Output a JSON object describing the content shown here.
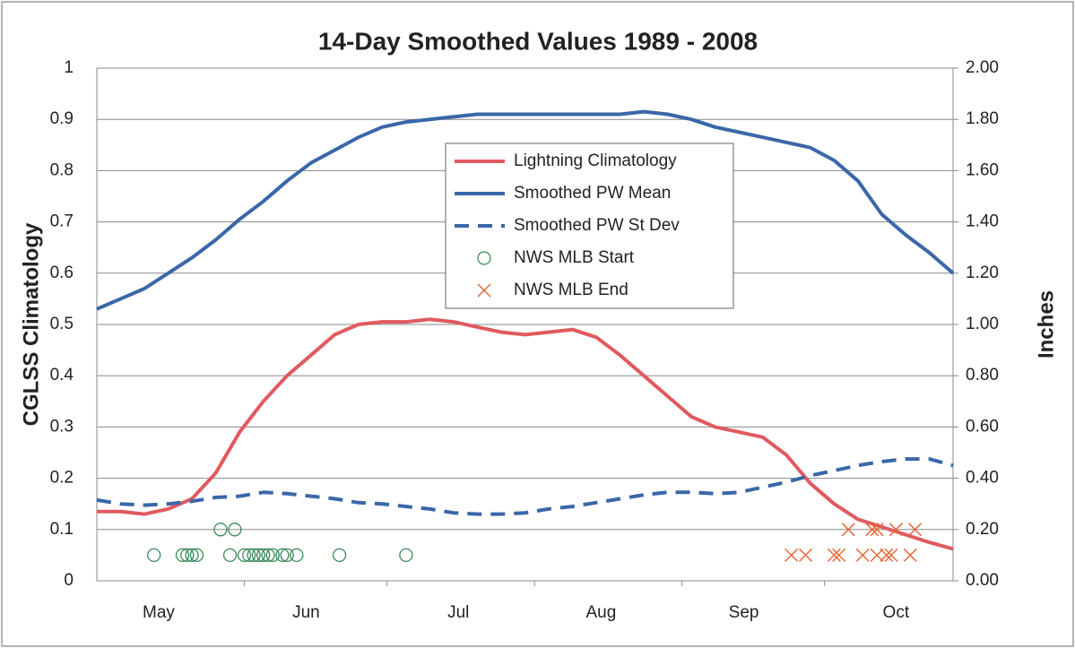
{
  "chart_data": {
    "type": "line",
    "title": "14-Day Smoothed Values 1989 - 2008",
    "ylabel": "CGLSS Climatology",
    "y2label": "Inches",
    "xlim": [
      121,
      301
    ],
    "xticks": [
      {
        "value": 134,
        "label": "May"
      },
      {
        "value": 165,
        "label": "Jun"
      },
      {
        "value": 197,
        "label": "Jul"
      },
      {
        "value": 227,
        "label": "Aug"
      },
      {
        "value": 257,
        "label": "Sep"
      },
      {
        "value": 289,
        "label": "Oct"
      }
    ],
    "xtick_marks": [
      152,
      182,
      213,
      244,
      274
    ],
    "ylim": [
      0,
      1
    ],
    "yticks": [
      0,
      0.1,
      0.2,
      0.3,
      0.4,
      0.5,
      0.6,
      0.7,
      0.8,
      0.9,
      1
    ],
    "y2lim": [
      0,
      2
    ],
    "y2ticks": [
      {
        "value": 0,
        "label": "0.00"
      },
      {
        "value": 0.2,
        "label": "0.20"
      },
      {
        "value": 0.4,
        "label": "0.40"
      },
      {
        "value": 0.6,
        "label": "0.60"
      },
      {
        "value": 0.8,
        "label": "0.80"
      },
      {
        "value": 1,
        "label": "1.00"
      },
      {
        "value": 1.2,
        "label": "1.20"
      },
      {
        "value": 1.4,
        "label": "1.40"
      },
      {
        "value": 1.6,
        "label": "1.60"
      },
      {
        "value": 1.8,
        "label": "1.80"
      },
      {
        "value": 2,
        "label": "2.00"
      }
    ],
    "grid": true,
    "legend": "upper center",
    "x": [
      121,
      126,
      131,
      136,
      141,
      146,
      151,
      156,
      161,
      166,
      171,
      176,
      181,
      186,
      191,
      196,
      201,
      206,
      211,
      216,
      221,
      226,
      231,
      236,
      241,
      246,
      251,
      256,
      261,
      266,
      271,
      276,
      281,
      286,
      291,
      296,
      301
    ],
    "series": [
      {
        "name": "Lightning Climatology",
        "color": "#e05a5f",
        "linestyle": "solid",
        "values": [
          0.135,
          0.135,
          0.13,
          0.14,
          0.16,
          0.21,
          0.29,
          0.35,
          0.4,
          0.44,
          0.48,
          0.5,
          0.505,
          0.505,
          0.51,
          0.505,
          0.495,
          0.485,
          0.48,
          0.485,
          0.49,
          0.475,
          0.44,
          0.4,
          0.36,
          0.32,
          0.3,
          0.29,
          0.28,
          0.245,
          0.19,
          0.15,
          0.12,
          0.105,
          0.09,
          0.075,
          0.062
        ]
      },
      {
        "name": "Smoothed PW Mean",
        "color": "#3a67a8",
        "linestyle": "solid",
        "axis": "y2",
        "values": [
          1.06,
          1.1,
          1.14,
          1.2,
          1.26,
          1.33,
          1.41,
          1.48,
          1.56,
          1.63,
          1.68,
          1.73,
          1.77,
          1.79,
          1.8,
          1.81,
          1.82,
          1.82,
          1.82,
          1.82,
          1.82,
          1.82,
          1.82,
          1.83,
          1.82,
          1.8,
          1.77,
          1.75,
          1.73,
          1.71,
          1.69,
          1.64,
          1.56,
          1.43,
          1.35,
          1.28,
          1.2
        ]
      },
      {
        "name": "Smoothed PW St Dev",
        "color": "#3a67a8",
        "linestyle": "dashed",
        "axis": "y2",
        "values": [
          0.315,
          0.3,
          0.295,
          0.3,
          0.31,
          0.325,
          0.33,
          0.345,
          0.34,
          0.33,
          0.32,
          0.305,
          0.3,
          0.29,
          0.28,
          0.265,
          0.26,
          0.26,
          0.265,
          0.28,
          0.29,
          0.305,
          0.32,
          0.335,
          0.345,
          0.345,
          0.34,
          0.345,
          0.365,
          0.385,
          0.41,
          0.43,
          0.45,
          0.465,
          0.475,
          0.475,
          0.45
        ]
      },
      {
        "name": "NWS MLB Start",
        "color": "#3a8a5a",
        "marker": "o",
        "x": [
          133,
          139,
          140,
          141,
          142,
          147,
          150,
          149,
          152,
          153,
          154,
          155,
          156,
          157,
          158,
          160,
          161,
          163,
          172,
          186
        ],
        "values": [
          0.05,
          0.05,
          0.05,
          0.05,
          0.05,
          0.1,
          0.1,
          0.05,
          0.05,
          0.05,
          0.05,
          0.05,
          0.05,
          0.05,
          0.05,
          0.05,
          0.05,
          0.05,
          0.05,
          0.05
        ]
      },
      {
        "name": "NWS MLB End",
        "color": "#e5693a",
        "marker": "x",
        "x": [
          279,
          284,
          285,
          289,
          293,
          267,
          270,
          276,
          277,
          282,
          285,
          287,
          288,
          292
        ],
        "values": [
          0.1,
          0.1,
          0.1,
          0.1,
          0.1,
          0.05,
          0.05,
          0.05,
          0.05,
          0.05,
          0.05,
          0.05,
          0.05,
          0.05
        ]
      }
    ]
  }
}
